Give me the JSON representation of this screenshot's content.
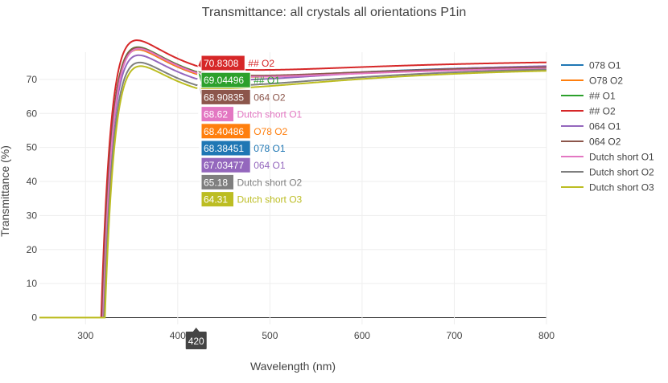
{
  "chart_data": {
    "type": "line",
    "title": "Transmittance: all crystals all orientations P1in",
    "xlabel": "Wavelength (nm)",
    "ylabel": "Transmittance (%)",
    "xlim": [
      250,
      800
    ],
    "ylim": [
      -2,
      78
    ],
    "xticks": [
      300,
      400,
      500,
      600,
      700,
      800
    ],
    "yticks": [
      0,
      10,
      20,
      30,
      40,
      50,
      60,
      70
    ],
    "grid": true,
    "legend_position": "right",
    "hover": {
      "x": 420,
      "x_label": "420"
    },
    "series": [
      {
        "name": "078 O1",
        "color": "#1f77b4",
        "hover_value": "68.38451",
        "onset": 318,
        "plateau": 66.3,
        "end": 73.8
      },
      {
        "name": "O78 O2",
        "color": "#ff7f0e",
        "hover_value": "68.40486",
        "onset": 318,
        "plateau": 66.3,
        "end": 73.5
      },
      {
        "name": "## O1",
        "color": "#2ca02c",
        "hover_value": "69.04496",
        "onset": 318,
        "plateau": 66.9,
        "end": 73.3
      },
      {
        "name": "## O2",
        "color": "#d62728",
        "hover_value": "70.8308",
        "onset": 317,
        "plateau": 68.6,
        "end": 75.0
      },
      {
        "name": "064 O1",
        "color": "#9467bd",
        "hover_value": "67.03477",
        "onset": 319,
        "plateau": 64.9,
        "end": 73.9
      },
      {
        "name": "064 O2",
        "color": "#8c564b",
        "hover_value": "68.90835",
        "onset": 318,
        "plateau": 66.8,
        "end": 73.6
      },
      {
        "name": "Dutch short O1",
        "color": "#e377c2",
        "hover_value": "68.62",
        "onset": 319,
        "plateau": 66.5,
        "end": 73.2
      },
      {
        "name": "Dutch short O2",
        "color": "#7f7f7f",
        "hover_value": "65.18",
        "onset": 320,
        "plateau": 63.1,
        "end": 72.9
      },
      {
        "name": "Dutch short O3",
        "color": "#bcbd22",
        "hover_value": "64.31",
        "onset": 321,
        "plateau": 62.2,
        "end": 72.5
      }
    ]
  }
}
